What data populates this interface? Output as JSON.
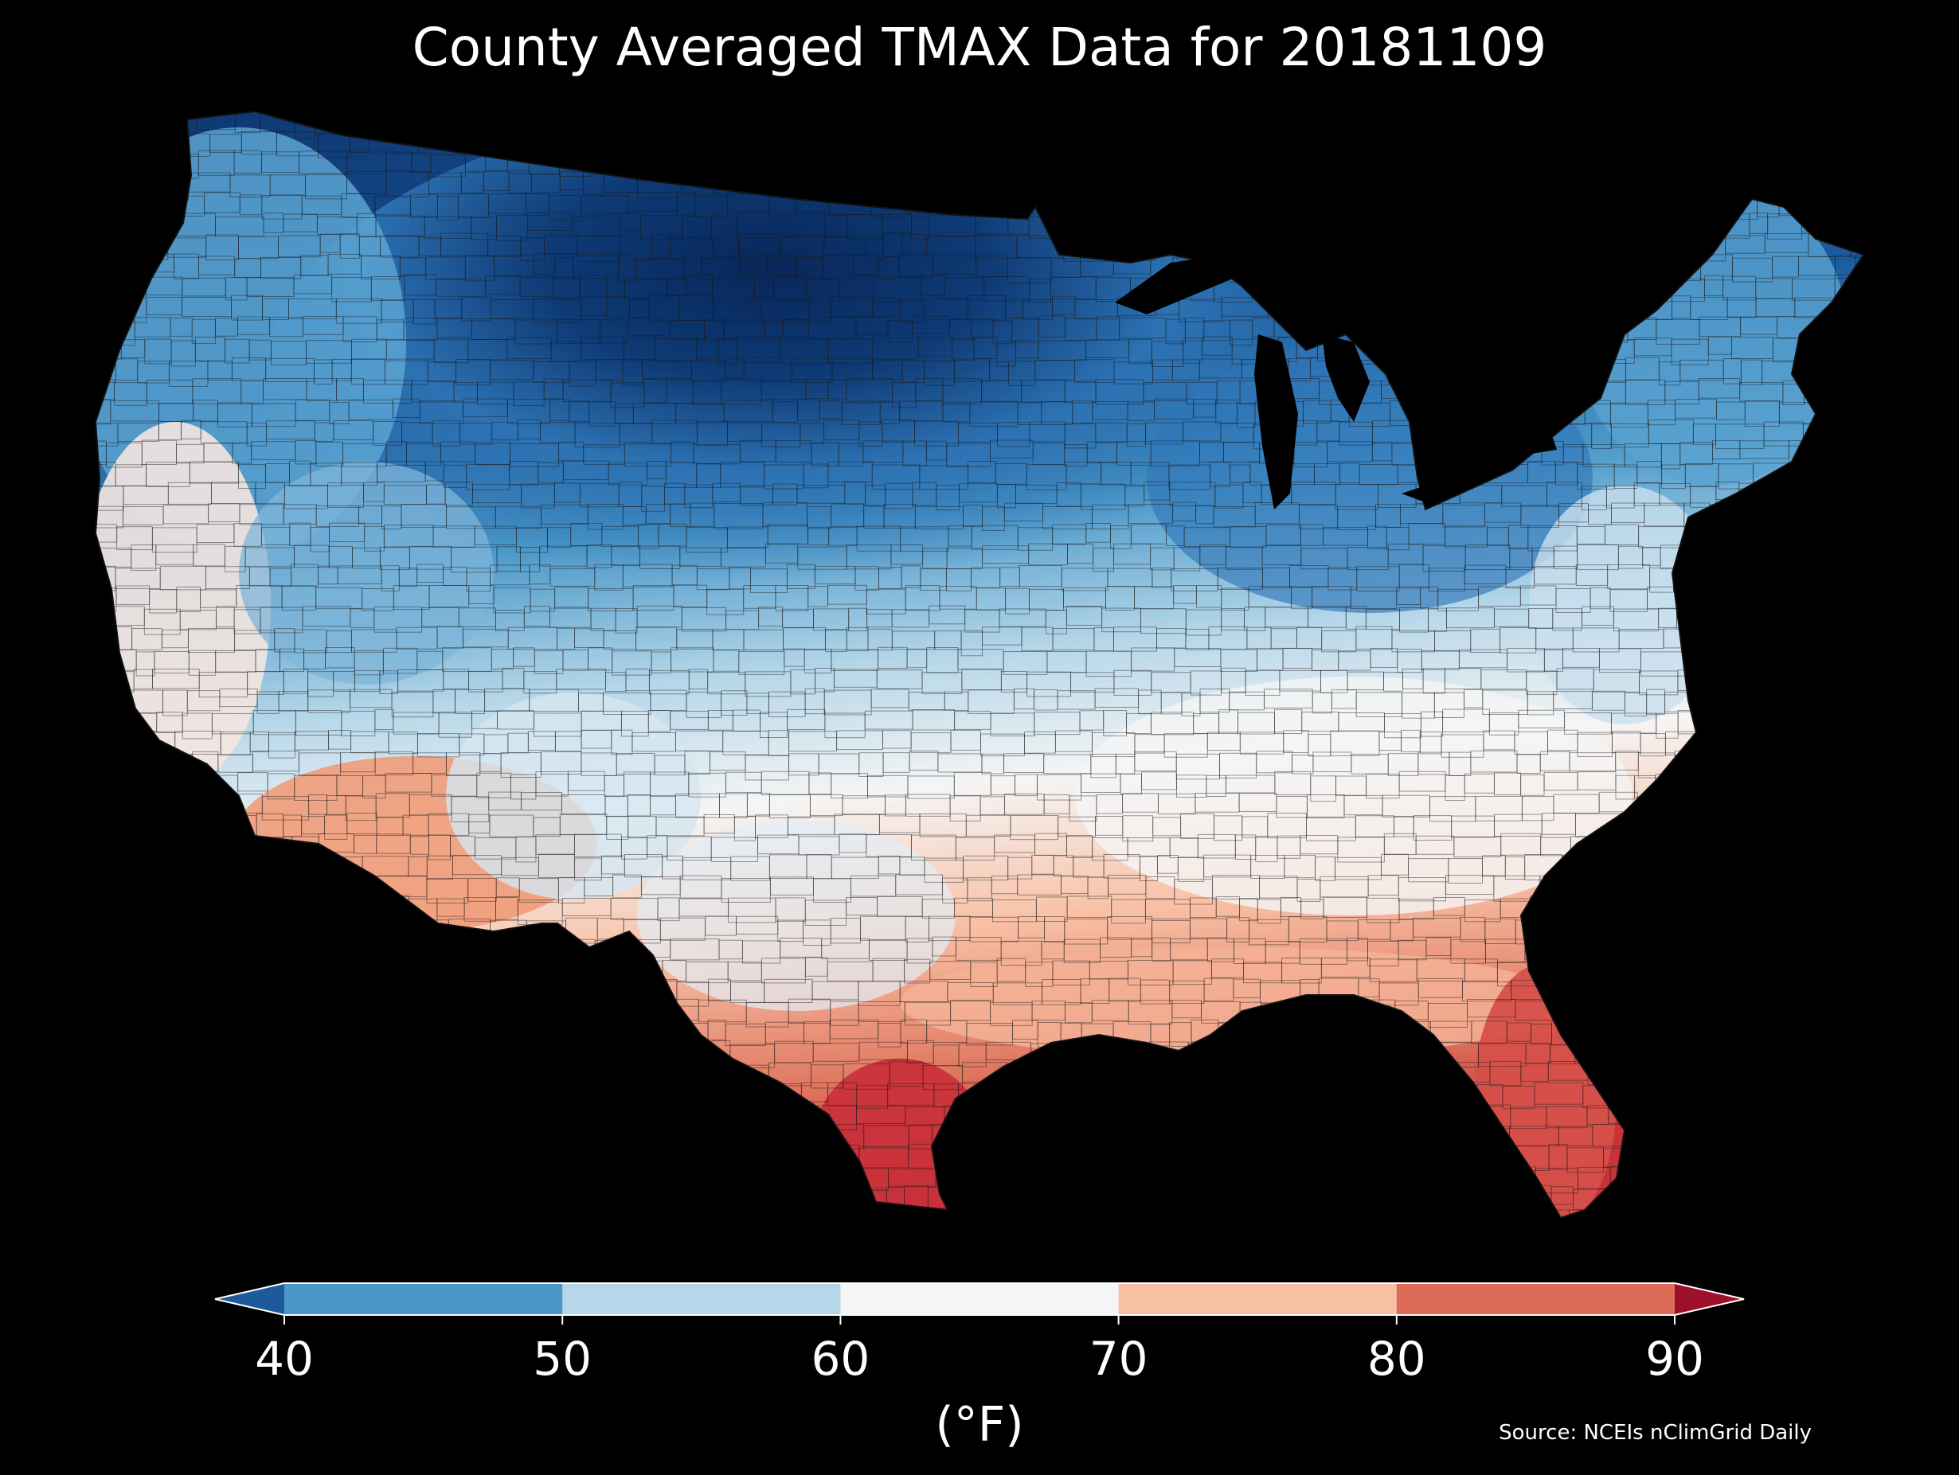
{
  "title": "County Averaged TMAX Data for 20181109",
  "source": "Source: NCEIs nClimGrid Daily",
  "colorbar": {
    "unit_label": "(°F)",
    "ticks": [
      "40",
      "50",
      "60",
      "70",
      "80",
      "90"
    ],
    "bins": [
      {
        "range": "<40",
        "color": "#1d5a9b"
      },
      {
        "range": "40-50",
        "color": "#4a98c9"
      },
      {
        "range": "50-60",
        "color": "#b6d7e9"
      },
      {
        "range": "60-70",
        "color": "#f5f5f5"
      },
      {
        "range": "70-80",
        "color": "#f8c0a5"
      },
      {
        "range": "80-90",
        "color": "#dd6b59"
      },
      {
        "range": ">90",
        "color": "#9e1029"
      }
    ]
  },
  "map": {
    "region": "Contiguous United States counties",
    "background": "#000000",
    "regions": [
      {
        "name": "Pacific Northwest",
        "tmax_band": "40-50",
        "color": "#4a98c9"
      },
      {
        "name": "Northern Rockies",
        "tmax_band": "<40",
        "color": "#1d5a9b"
      },
      {
        "name": "Northern Plains",
        "tmax_band": "<40",
        "color": "#0b2f62"
      },
      {
        "name": "Upper Midwest",
        "tmax_band": "<40",
        "color": "#0e3770"
      },
      {
        "name": "Great Lakes",
        "tmax_band": "40-50",
        "color": "#2f76b8"
      },
      {
        "name": "New England",
        "tmax_band": "40-50",
        "color": "#5aa3d1"
      },
      {
        "name": "Mid-Atlantic",
        "tmax_band": "50-60",
        "color": "#b6d7e9"
      },
      {
        "name": "Ohio Valley",
        "tmax_band": "50-60",
        "color": "#cfe3f0"
      },
      {
        "name": "Southeast",
        "tmax_band": "60-70",
        "color": "#f5f5f5"
      },
      {
        "name": "Gulf Coast",
        "tmax_band": "70-80",
        "color": "#f8c0a5"
      },
      {
        "name": "Florida",
        "tmax_band": "80-90",
        "color": "#d6504a"
      },
      {
        "name": "South Texas",
        "tmax_band": "80-90",
        "color": "#c9323a"
      },
      {
        "name": "Southwest desert",
        "tmax_band": "70-80",
        "color": "#ef9b78"
      },
      {
        "name": "California coast",
        "tmax_band": "60-70",
        "color": "#f7e4dc"
      },
      {
        "name": "Great Basin",
        "tmax_band": "40-50",
        "color": "#6aaed6"
      },
      {
        "name": "Central Plains",
        "tmax_band": "40-50",
        "color": "#2c6fae"
      },
      {
        "name": "Southern Plains",
        "tmax_band": "50-60",
        "color": "#9ecae1"
      }
    ]
  }
}
